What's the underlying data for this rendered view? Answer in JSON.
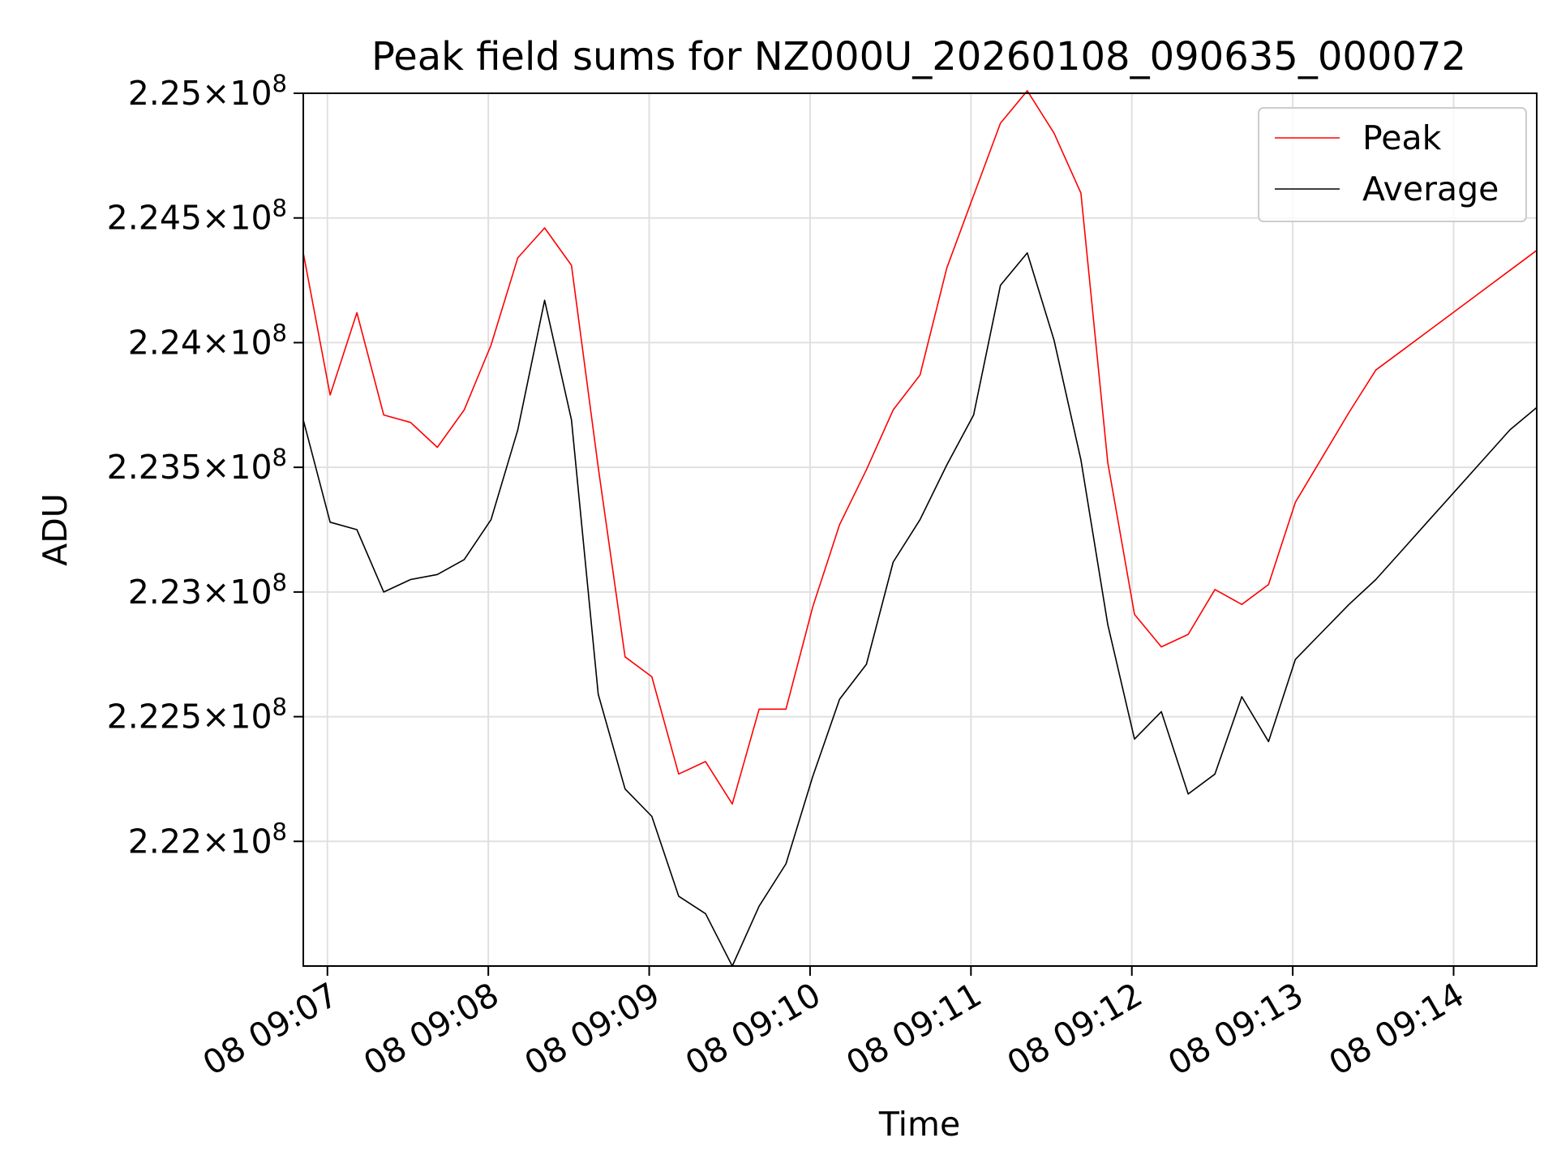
{
  "chart_data": {
    "type": "line",
    "title": "Peak field sums for NZ000U_20260108_090635_000072",
    "xlabel": "Time",
    "ylabel": "ADU",
    "x_tick_labels": [
      "08 09:07",
      "08 09:08",
      "08 09:09",
      "08 09:10",
      "08 09:11",
      "08 09:12",
      "08 09:13",
      "08 09:14"
    ],
    "y_tick_labels": [
      {
        "value": 222000000.0,
        "mantissa": "2.22",
        "base": "10",
        "exp": "8"
      },
      {
        "value": 222500000.0,
        "mantissa": "2.225",
        "base": "10",
        "exp": "8"
      },
      {
        "value": 223000000.0,
        "mantissa": "2.23",
        "base": "10",
        "exp": "8"
      },
      {
        "value": 223500000.0,
        "mantissa": "2.235",
        "base": "10",
        "exp": "8"
      },
      {
        "value": 224000000.0,
        "mantissa": "2.24",
        "base": "10",
        "exp": "8"
      },
      {
        "value": 224500000.0,
        "mantissa": "2.245",
        "base": "10",
        "exp": "8"
      },
      {
        "value": 225000000.0,
        "mantissa": "2.25",
        "base": "10",
        "exp": "8"
      }
    ],
    "ylim": [
      221500000,
      225000000
    ],
    "xlim": [
      "09:06:51",
      "09:14:31"
    ],
    "grid": true,
    "legend_position": "top-right",
    "x": [
      "09:06:51",
      "09:07:01",
      "09:07:11",
      "09:07:21",
      "09:07:31",
      "09:07:41",
      "09:07:51",
      "09:08:01",
      "09:08:11",
      "09:08:21",
      "09:08:31",
      "09:08:41",
      "09:08:51",
      "09:09:01",
      "09:09:11",
      "09:09:21",
      "09:09:31",
      "09:09:41",
      "09:09:51",
      "09:10:01",
      "09:10:11",
      "09:10:21",
      "09:10:31",
      "09:10:41",
      "09:10:51",
      "09:11:01",
      "09:11:11",
      "09:11:21",
      "09:11:31",
      "09:11:41",
      "09:11:51",
      "09:12:01",
      "09:12:11",
      "09:12:21",
      "09:12:31",
      "09:12:41",
      "09:12:51",
      "09:13:01",
      "09:13:11",
      "09:13:21",
      "09:13:31",
      "09:13:41",
      "09:13:51",
      "09:14:01",
      "09:14:11",
      "09:14:21",
      "09:14:31"
    ],
    "series": [
      {
        "name": "Peak",
        "color": "#ff0000",
        "values": [
          224360000,
          223790000,
          224120000,
          223710000,
          223680000,
          223580000,
          223730000,
          223990000,
          224340000,
          224460000,
          224310000,
          223500000,
          222740000,
          222660000,
          222270000,
          222320000,
          222150000,
          222530000,
          222530000,
          222940000,
          223270000,
          223490000,
          223730000,
          223870000,
          224300000,
          224590000,
          224880000,
          225010000,
          224840000,
          224600000,
          223520000,
          222910000,
          222780000,
          222830000,
          223010000,
          222950000,
          223030000,
          223360000,
          223540000,
          223720000,
          223890000,
          223970000,
          224050000,
          224130000,
          224210000,
          224290000,
          224370000
        ]
      },
      {
        "name": "Average",
        "color": "#000000",
        "values": [
          223690000,
          223280000,
          223250000,
          223000000,
          223050000,
          223070000,
          223130000,
          223290000,
          223650000,
          224170000,
          223690000,
          222590000,
          222210000,
          222100000,
          221780000,
          221710000,
          221500000,
          221740000,
          221910000,
          222260000,
          222570000,
          222710000,
          223120000,
          223290000,
          223510000,
          223710000,
          224230000,
          224360000,
          224010000,
          223530000,
          222870000,
          222410000,
          222520000,
          222190000,
          222270000,
          222580000,
          222400000,
          222730000,
          222840000,
          222950000,
          223050000,
          223170000,
          223290000,
          223410000,
          223530000,
          223650000,
          223740000
        ]
      }
    ]
  }
}
